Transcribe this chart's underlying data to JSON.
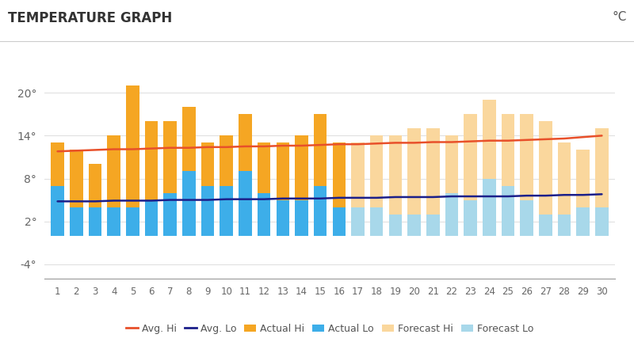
{
  "title": "TEMPERATURE GRAPH",
  "unit_label": "°C",
  "days": [
    1,
    2,
    3,
    4,
    5,
    6,
    7,
    8,
    9,
    10,
    11,
    12,
    13,
    14,
    15,
    16,
    17,
    18,
    19,
    20,
    21,
    22,
    23,
    24,
    25,
    26,
    27,
    28,
    29,
    30
  ],
  "actual_hi": [
    13,
    12,
    10,
    14,
    21,
    16,
    16,
    18,
    13,
    14,
    17,
    13,
    13,
    14,
    17,
    13,
    13,
    14,
    14,
    15,
    15,
    14,
    17,
    19,
    17,
    17,
    16,
    13,
    12,
    15
  ],
  "actual_lo": [
    7,
    4,
    4,
    4,
    4,
    5,
    6,
    9,
    7,
    7,
    9,
    6,
    5,
    5,
    7,
    4,
    4,
    4,
    3,
    3,
    3,
    6,
    5,
    8,
    7,
    5,
    3,
    3,
    4,
    4
  ],
  "avg_hi": [
    11.8,
    11.9,
    12.0,
    12.1,
    12.1,
    12.2,
    12.3,
    12.3,
    12.4,
    12.4,
    12.5,
    12.5,
    12.6,
    12.6,
    12.7,
    12.8,
    12.8,
    12.9,
    13.0,
    13.0,
    13.1,
    13.1,
    13.2,
    13.3,
    13.3,
    13.4,
    13.5,
    13.6,
    13.8,
    14.0
  ],
  "avg_lo": [
    4.8,
    4.8,
    4.8,
    4.9,
    4.9,
    4.9,
    5.0,
    5.0,
    5.0,
    5.1,
    5.1,
    5.1,
    5.2,
    5.2,
    5.2,
    5.3,
    5.3,
    5.3,
    5.4,
    5.4,
    5.4,
    5.5,
    5.5,
    5.5,
    5.5,
    5.6,
    5.6,
    5.7,
    5.7,
    5.8
  ],
  "actual_hi_color": "#F5A623",
  "actual_lo_color": "#3DAEE9",
  "forecast_hi_color": "#FAD79D",
  "forecast_lo_color": "#A8D8EA",
  "avg_hi_color": "#E8502A",
  "avg_lo_color": "#1B1F8A",
  "bg_color": "#FFFFFF",
  "grid_color": "#E0E0E0",
  "ylim": [
    -6,
    24
  ],
  "yticks": [
    -4,
    2,
    8,
    14,
    20
  ],
  "ytick_labels": [
    "-4°",
    "2°",
    "8°",
    "14°",
    "20°"
  ],
  "split_day": 17
}
